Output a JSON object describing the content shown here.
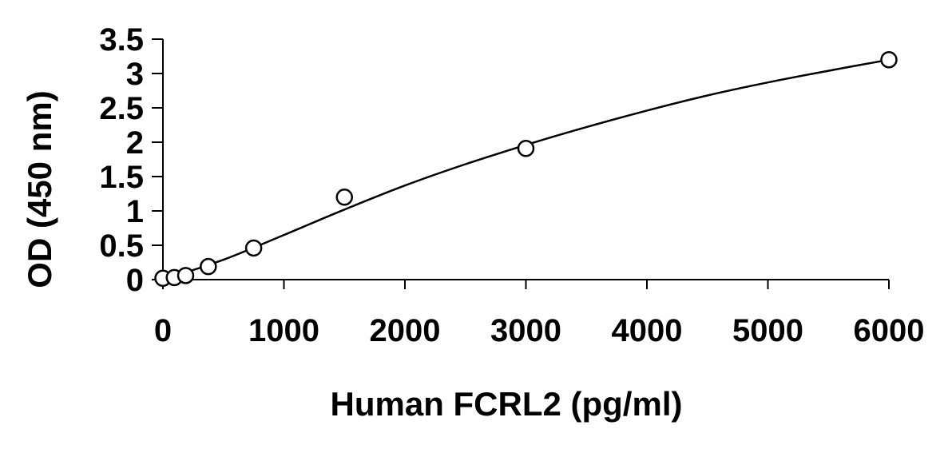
{
  "chart_data": {
    "type": "scatter",
    "title": "",
    "xlabel": "Human FCRL2 (pg/ml)",
    "ylabel": "OD (450 nm)",
    "xlim": [
      0,
      6000
    ],
    "ylim": [
      0,
      3.5
    ],
    "x_ticks": [
      0,
      1000,
      2000,
      3000,
      4000,
      5000,
      6000
    ],
    "y_ticks": [
      0,
      0.5,
      1,
      1.5,
      2,
      2.5,
      3,
      3.5
    ],
    "x_tick_labels": [
      "0",
      "1000",
      "2000",
      "3000",
      "4000",
      "5000",
      "6000"
    ],
    "y_tick_labels": [
      "0",
      "0.5",
      "1",
      "1.5",
      "2",
      "2.5",
      "3",
      "3.5"
    ],
    "grid": false,
    "legend": false,
    "series": [
      {
        "x": [
          0,
          94,
          188,
          375,
          750,
          1500,
          3000,
          6000
        ],
        "y": [
          0.02,
          0.03,
          0.06,
          0.19,
          0.46,
          1.2,
          1.91,
          3.2
        ],
        "marker": "open-circle",
        "fit": "smooth-curve"
      }
    ],
    "fit_curve": {
      "x": [
        0,
        500,
        1000,
        1500,
        2000,
        2500,
        3000,
        3500,
        4000,
        4500,
        5000,
        5500,
        6000
      ],
      "y": [
        0.0,
        0.29,
        0.65,
        1.02,
        1.37,
        1.68,
        1.96,
        2.22,
        2.46,
        2.68,
        2.87,
        3.04,
        3.2
      ]
    }
  }
}
